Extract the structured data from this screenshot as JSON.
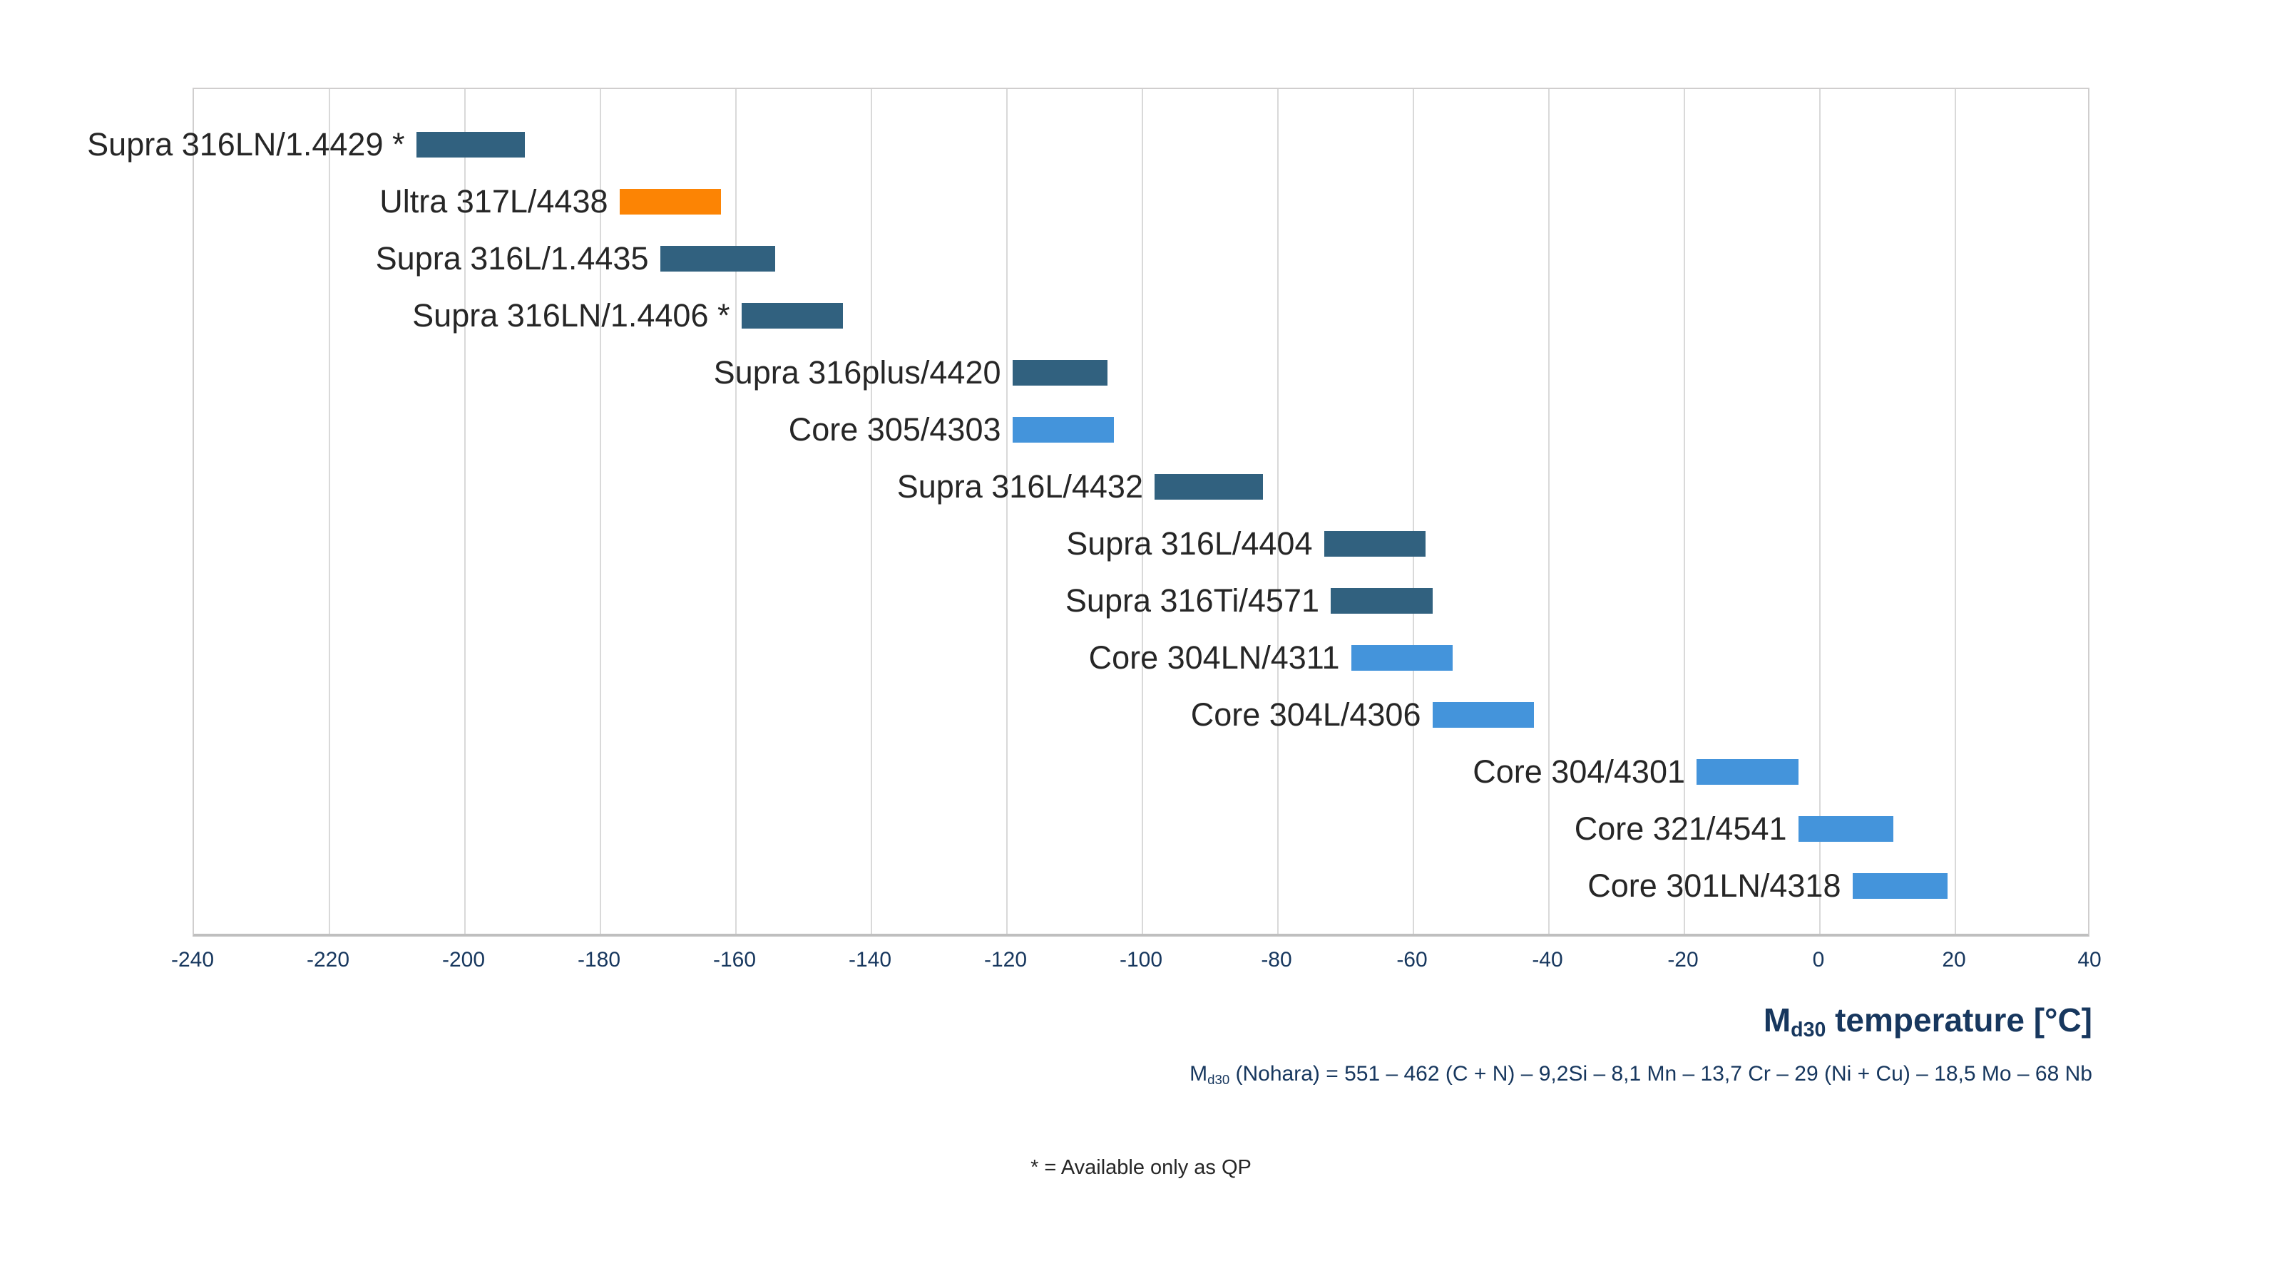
{
  "chart_data": {
    "type": "bar",
    "orientation": "horizontal_range",
    "title": "",
    "xlabel_rich": {
      "prefix": "M",
      "subscript": "d30",
      "suffix": " temperature [°C]"
    },
    "xlim": [
      -240,
      40
    ],
    "x_tick_step": 20,
    "x_ticks": [
      -240,
      -220,
      -200,
      -180,
      -160,
      -140,
      -120,
      -100,
      -80,
      -60,
      -40,
      -20,
      0,
      20,
      40
    ],
    "grid": "vertical",
    "legend": "none",
    "categories": [
      "Supra 316LN/1.4429 *",
      "Ultra 317L/4438",
      "Supra 316L/1.4435",
      "Supra 316LN/1.4406 *",
      "Supra 316plus/4420",
      "Core 305/4303",
      "Supra 316L/4432",
      "Supra 316L/4404",
      "Supra 316Ti/4571",
      "Core 304LN/4311",
      "Core 304L/4306",
      "Core 304/4301",
      "Core 321/4541",
      "Core 301LN/4318"
    ],
    "bars": [
      {
        "label": "Supra 316LN/1.4429 *",
        "start": -207,
        "end": -191,
        "color_key": "dark_blue"
      },
      {
        "label": "Ultra 317L/4438",
        "start": -177,
        "end": -162,
        "color_key": "orange"
      },
      {
        "label": "Supra 316L/1.4435",
        "start": -171,
        "end": -154,
        "color_key": "dark_blue"
      },
      {
        "label": "Supra 316LN/1.4406 *",
        "start": -159,
        "end": -144,
        "color_key": "dark_blue"
      },
      {
        "label": "Supra 316plus/4420",
        "start": -119,
        "end": -105,
        "color_key": "dark_blue"
      },
      {
        "label": "Core 305/4303",
        "start": -119,
        "end": -104,
        "color_key": "light_blue"
      },
      {
        "label": "Supra 316L/4432",
        "start": -98,
        "end": -82,
        "color_key": "dark_blue"
      },
      {
        "label": "Supra 316L/4404",
        "start": -73,
        "end": -58,
        "color_key": "dark_blue"
      },
      {
        "label": "Supra 316Ti/4571",
        "start": -72,
        "end": -57,
        "color_key": "dark_blue"
      },
      {
        "label": "Core 304LN/4311",
        "start": -69,
        "end": -54,
        "color_key": "light_blue"
      },
      {
        "label": "Core 304L/4306",
        "start": -57,
        "end": -42,
        "color_key": "light_blue"
      },
      {
        "label": "Core 304/4301",
        "start": -18,
        "end": -3,
        "color_key": "light_blue"
      },
      {
        "label": "Core 321/4541",
        "start": -3,
        "end": 11,
        "color_key": "light_blue"
      },
      {
        "label": "Core 301LN/4318",
        "start": 5,
        "end": 19,
        "color_key": "light_blue"
      }
    ]
  },
  "annotations": {
    "formula_rich": {
      "prefix": "M",
      "subscript": "d30",
      "suffix": " (Nohara) = 551 – 462 (C + N) – 9,2Si – 8,1 Mn – 13,7 Cr – 29 (Ni + Cu) – 18,5 Mo – 68 Nb"
    },
    "footnote": "* = Available only as QP"
  },
  "colors": {
    "dark_blue": "#31617f",
    "light_blue": "#4494db",
    "orange": "#fc8404",
    "gridline": "#d9d9d9",
    "plot_border": "#d0cece",
    "axis_line": "#bfbfbf",
    "axis_text": "#17375e",
    "category_text": "#262626",
    "background": "#ffffff"
  }
}
